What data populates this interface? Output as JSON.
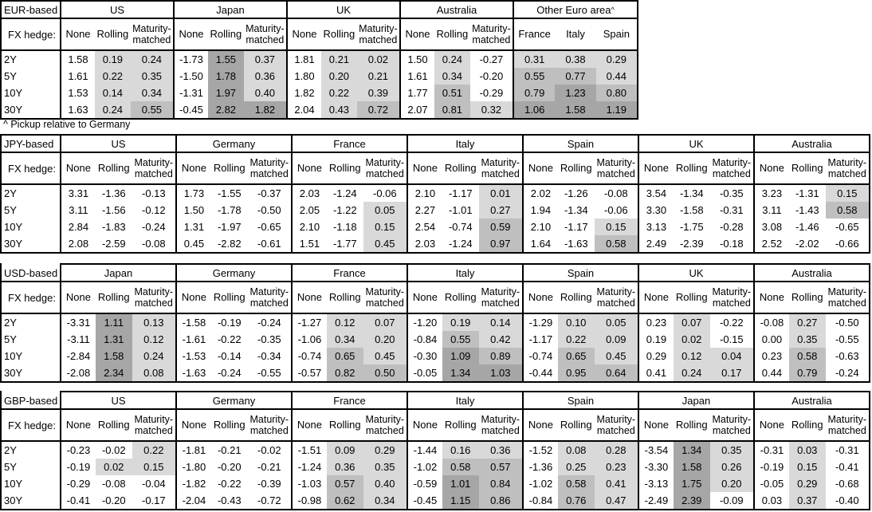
{
  "note": "^ Pickup relative to Germany",
  "row_labels": [
    "2Y",
    "5Y",
    "10Y",
    "30Y"
  ],
  "fx_hedge_label": "FX hedge:",
  "hedge_columns": [
    "None",
    "Rolling",
    "Maturity-matched"
  ],
  "shading": {
    "light": "#d9d9d9",
    "medium": "#bfbfbf",
    "dark": "#a6a6a6",
    "light_min": 0,
    "medium_min": 0.5,
    "dark_min": 1.0,
    "rule": "positive values in hedged columns shaded by magnitude; None column never shaded except Other Euro area group"
  },
  "tables": [
    {
      "label": "EUR-based",
      "label_top_border": true,
      "groups": [
        {
          "name": "US",
          "rows": [
            [
              "1.58",
              "0.19",
              "0.24"
            ],
            [
              "1.61",
              "0.22",
              "0.35"
            ],
            [
              "1.53",
              "0.14",
              "0.34"
            ],
            [
              "1.63",
              "0.24",
              "0.55"
            ]
          ]
        },
        {
          "name": "Japan",
          "rows": [
            [
              "-1.73",
              "1.55",
              "0.37"
            ],
            [
              "-1.50",
              "1.78",
              "0.36"
            ],
            [
              "-1.31",
              "1.97",
              "0.40"
            ],
            [
              "-0.45",
              "2.82",
              "1.82"
            ]
          ]
        },
        {
          "name": "UK",
          "rows": [
            [
              "1.81",
              "0.21",
              "0.02"
            ],
            [
              "1.80",
              "0.20",
              "0.21"
            ],
            [
              "1.82",
              "0.22",
              "0.39"
            ],
            [
              "2.04",
              "0.43",
              "0.72"
            ]
          ]
        },
        {
          "name": "Australia",
          "rows": [
            [
              "1.50",
              "0.24",
              "-0.27"
            ],
            [
              "1.61",
              "0.34",
              "-0.20"
            ],
            [
              "1.77",
              "0.51",
              "-0.29"
            ],
            [
              "2.07",
              "0.81",
              "0.32"
            ]
          ]
        },
        {
          "name": "Other Euro area",
          "sup": "^",
          "columns": [
            "France",
            "Italy",
            "Spain"
          ],
          "shade_all": true,
          "rows": [
            [
              "0.31",
              "0.38",
              "0.29"
            ],
            [
              "0.55",
              "0.77",
              "0.44"
            ],
            [
              "0.79",
              "1.23",
              "0.80"
            ],
            [
              "1.06",
              "1.58",
              "1.19"
            ]
          ]
        }
      ]
    },
    {
      "label": "JPY-based",
      "label_top_border": true,
      "groups": [
        {
          "name": "US",
          "rows": [
            [
              "3.31",
              "-1.36",
              "-0.13"
            ],
            [
              "3.11",
              "-1.56",
              "-0.12"
            ],
            [
              "2.84",
              "-1.83",
              "-0.24"
            ],
            [
              "2.08",
              "-2.59",
              "-0.08"
            ]
          ]
        },
        {
          "name": "Germany",
          "rows": [
            [
              "1.73",
              "-1.55",
              "-0.37"
            ],
            [
              "1.50",
              "-1.78",
              "-0.50"
            ],
            [
              "1.31",
              "-1.97",
              "-0.65"
            ],
            [
              "0.45",
              "-2.82",
              "-0.61"
            ]
          ]
        },
        {
          "name": "France",
          "rows": [
            [
              "2.03",
              "-1.24",
              "-0.06"
            ],
            [
              "2.05",
              "-1.22",
              "0.05"
            ],
            [
              "2.10",
              "-1.18",
              "0.15"
            ],
            [
              "1.51",
              "-1.77",
              "0.45"
            ]
          ]
        },
        {
          "name": "Italy",
          "rows": [
            [
              "2.10",
              "-1.17",
              "0.01"
            ],
            [
              "2.27",
              "-1.01",
              "0.27"
            ],
            [
              "2.54",
              "-0.74",
              "0.59"
            ],
            [
              "2.03",
              "-1.24",
              "0.97"
            ]
          ]
        },
        {
          "name": "Spain",
          "rows": [
            [
              "2.02",
              "-1.26",
              "-0.08"
            ],
            [
              "1.94",
              "-1.34",
              "-0.06"
            ],
            [
              "2.10",
              "-1.17",
              "0.15"
            ],
            [
              "1.64",
              "-1.63",
              "0.58"
            ]
          ]
        },
        {
          "name": "UK",
          "rows": [
            [
              "3.54",
              "-1.34",
              "-0.35"
            ],
            [
              "3.30",
              "-1.58",
              "-0.31"
            ],
            [
              "3.13",
              "-1.75",
              "-0.28"
            ],
            [
              "2.49",
              "-2.39",
              "-0.18"
            ]
          ]
        },
        {
          "name": "Australia",
          "rows": [
            [
              "3.23",
              "-1.31",
              "0.15"
            ],
            [
              "3.11",
              "-1.43",
              "0.58"
            ],
            [
              "3.08",
              "-1.46",
              "-0.65"
            ],
            [
              "2.52",
              "-2.02",
              "-0.66"
            ]
          ]
        }
      ]
    },
    {
      "label": "USD-based",
      "label_top_border": false,
      "groups": [
        {
          "name": "Japan",
          "rows": [
            [
              "-3.31",
              "1.11",
              "0.13"
            ],
            [
              "-3.11",
              "1.31",
              "0.12"
            ],
            [
              "-2.84",
              "1.58",
              "0.24"
            ],
            [
              "-2.08",
              "2.34",
              "0.08"
            ]
          ]
        },
        {
          "name": "Germany",
          "rows": [
            [
              "-1.58",
              "-0.19",
              "-0.24"
            ],
            [
              "-1.61",
              "-0.22",
              "-0.35"
            ],
            [
              "-1.53",
              "-0.14",
              "-0.34"
            ],
            [
              "-1.63",
              "-0.24",
              "-0.55"
            ]
          ]
        },
        {
          "name": "France",
          "rows": [
            [
              "-1.27",
              "0.12",
              "0.07"
            ],
            [
              "-1.06",
              "0.34",
              "0.20"
            ],
            [
              "-0.74",
              "0.65",
              "0.45"
            ],
            [
              "-0.57",
              "0.82",
              "0.50"
            ]
          ]
        },
        {
          "name": "Italy",
          "rows": [
            [
              "-1.20",
              "0.19",
              "0.14"
            ],
            [
              "-0.84",
              "0.55",
              "0.42"
            ],
            [
              "-0.30",
              "1.09",
              "0.89"
            ],
            [
              "-0.05",
              "1.34",
              "1.03"
            ]
          ]
        },
        {
          "name": "Spain",
          "rows": [
            [
              "-1.29",
              "0.10",
              "0.05"
            ],
            [
              "-1.17",
              "0.22",
              "0.09"
            ],
            [
              "-0.74",
              "0.65",
              "0.45"
            ],
            [
              "-0.44",
              "0.95",
              "0.64"
            ]
          ]
        },
        {
          "name": "UK",
          "rows": [
            [
              "0.23",
              "0.07",
              "-0.22"
            ],
            [
              "0.19",
              "0.02",
              "-0.15"
            ],
            [
              "0.29",
              "0.12",
              "0.04"
            ],
            [
              "0.41",
              "0.24",
              "0.17"
            ]
          ]
        },
        {
          "name": "Australia",
          "rows": [
            [
              "-0.08",
              "0.27",
              "-0.50"
            ],
            [
              "0.00",
              "0.35",
              "-0.55"
            ],
            [
              "0.23",
              "0.58",
              "-0.63"
            ],
            [
              "0.44",
              "0.79",
              "-0.24"
            ]
          ]
        }
      ]
    },
    {
      "label": "GBP-based",
      "label_top_border": false,
      "groups": [
        {
          "name": "US",
          "rows": [
            [
              "-0.23",
              "-0.02",
              "0.22"
            ],
            [
              "-0.19",
              "0.02",
              "0.15"
            ],
            [
              "-0.29",
              "-0.08",
              "-0.04"
            ],
            [
              "-0.41",
              "-0.20",
              "-0.17"
            ]
          ]
        },
        {
          "name": "Germany",
          "rows": [
            [
              "-1.81",
              "-0.21",
              "-0.02"
            ],
            [
              "-1.80",
              "-0.20",
              "-0.21"
            ],
            [
              "-1.82",
              "-0.22",
              "-0.39"
            ],
            [
              "-2.04",
              "-0.43",
              "-0.72"
            ]
          ]
        },
        {
          "name": "France",
          "rows": [
            [
              "-1.51",
              "0.09",
              "0.29"
            ],
            [
              "-1.24",
              "0.36",
              "0.35"
            ],
            [
              "-1.03",
              "0.57",
              "0.40"
            ],
            [
              "-0.98",
              "0.62",
              "0.34"
            ]
          ]
        },
        {
          "name": "Italy",
          "rows": [
            [
              "-1.44",
              "0.16",
              "0.36"
            ],
            [
              "-1.02",
              "0.58",
              "0.57"
            ],
            [
              "-0.59",
              "1.01",
              "0.84"
            ],
            [
              "-0.45",
              "1.15",
              "0.86"
            ]
          ]
        },
        {
          "name": "Spain",
          "rows": [
            [
              "-1.52",
              "0.08",
              "0.28"
            ],
            [
              "-1.36",
              "0.25",
              "0.23"
            ],
            [
              "-1.02",
              "0.58",
              "0.41"
            ],
            [
              "-0.84",
              "0.76",
              "0.47"
            ]
          ]
        },
        {
          "name": "Japan",
          "rows": [
            [
              "-3.54",
              "1.34",
              "0.35"
            ],
            [
              "-3.30",
              "1.58",
              "0.26"
            ],
            [
              "-3.13",
              "1.75",
              "0.20"
            ],
            [
              "-2.49",
              "2.39",
              "-0.09"
            ]
          ]
        },
        {
          "name": "Australia",
          "rows": [
            [
              "-0.31",
              "0.03",
              "-0.31"
            ],
            [
              "-0.19",
              "0.15",
              "-0.41"
            ],
            [
              "-0.05",
              "0.29",
              "-0.68"
            ],
            [
              "0.03",
              "0.37",
              "-0.40"
            ]
          ]
        }
      ]
    }
  ]
}
